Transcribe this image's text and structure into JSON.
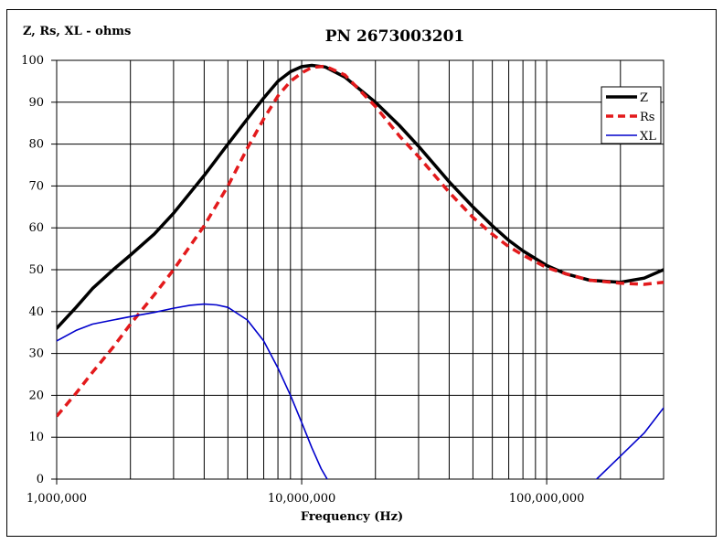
{
  "chart_data": {
    "type": "line",
    "title": "PN 2673003201",
    "xlabel": "Frequency (Hz)",
    "ylabel": "Z, Rs, XL - ohms",
    "xscale": "log",
    "xlim": [
      1000000,
      300000000
    ],
    "ylim": [
      0,
      100
    ],
    "grid": true,
    "legend_position": "top-right",
    "x_tick_labels": [
      {
        "value": 1000000,
        "label": "1,000,000"
      },
      {
        "value": 10000000,
        "label": "10,000,000"
      },
      {
        "value": 100000000,
        "label": "100,000,000"
      }
    ],
    "y_ticks": [
      0,
      10,
      20,
      30,
      40,
      50,
      60,
      70,
      80,
      90,
      100
    ],
    "series": [
      {
        "name": "Z",
        "color": "#000000",
        "style": "solid-thick",
        "points": [
          [
            1000000,
            36
          ],
          [
            1200000,
            41
          ],
          [
            1400000,
            45.5
          ],
          [
            1700000,
            50
          ],
          [
            2000000,
            53.5
          ],
          [
            2500000,
            58.5
          ],
          [
            3000000,
            63.5
          ],
          [
            4000000,
            72.5
          ],
          [
            5000000,
            80
          ],
          [
            6000000,
            86
          ],
          [
            7000000,
            91
          ],
          [
            8000000,
            95
          ],
          [
            9000000,
            97.3
          ],
          [
            10000000,
            98.5
          ],
          [
            11000000,
            98.8
          ],
          [
            12500000,
            98.4
          ],
          [
            15000000,
            96
          ],
          [
            20000000,
            90
          ],
          [
            25000000,
            84.5
          ],
          [
            30000000,
            79.5
          ],
          [
            40000000,
            71
          ],
          [
            50000000,
            65
          ],
          [
            60000000,
            60.5
          ],
          [
            70000000,
            57
          ],
          [
            80000000,
            54.5
          ],
          [
            100000000,
            51
          ],
          [
            120000000,
            49
          ],
          [
            150000000,
            47.5
          ],
          [
            200000000,
            47
          ],
          [
            250000000,
            48
          ],
          [
            300000000,
            50
          ]
        ]
      },
      {
        "name": "Rs",
        "color": "#e31a1c",
        "style": "dashed-thick",
        "points": [
          [
            1000000,
            15
          ],
          [
            1200000,
            20.5
          ],
          [
            1400000,
            25.5
          ],
          [
            1700000,
            31.5
          ],
          [
            2000000,
            37
          ],
          [
            2500000,
            44
          ],
          [
            3000000,
            50
          ],
          [
            4000000,
            60.5
          ],
          [
            5000000,
            70
          ],
          [
            6000000,
            79
          ],
          [
            7000000,
            86
          ],
          [
            8000000,
            91.5
          ],
          [
            9000000,
            95
          ],
          [
            10000000,
            97
          ],
          [
            11000000,
            98.3
          ],
          [
            12500000,
            98.6
          ],
          [
            15000000,
            96.5
          ],
          [
            20000000,
            89
          ],
          [
            25000000,
            82
          ],
          [
            30000000,
            77
          ],
          [
            40000000,
            68.5
          ],
          [
            50000000,
            62.5
          ],
          [
            60000000,
            58.5
          ],
          [
            70000000,
            55.5
          ],
          [
            80000000,
            53.5
          ],
          [
            100000000,
            50.5
          ],
          [
            120000000,
            49
          ],
          [
            150000000,
            47.5
          ],
          [
            200000000,
            46.8
          ],
          [
            250000000,
            46.5
          ],
          [
            300000000,
            47
          ]
        ]
      },
      {
        "name": "XL",
        "color": "#0000cc",
        "style": "solid-thin",
        "points": [
          [
            1000000,
            33
          ],
          [
            1200000,
            35.5
          ],
          [
            1400000,
            37
          ],
          [
            1700000,
            38
          ],
          [
            2000000,
            38.8
          ],
          [
            2500000,
            39.8
          ],
          [
            3000000,
            40.8
          ],
          [
            3500000,
            41.5
          ],
          [
            4000000,
            41.8
          ],
          [
            4500000,
            41.6
          ],
          [
            5000000,
            41
          ],
          [
            6000000,
            38
          ],
          [
            7000000,
            33
          ],
          [
            8000000,
            26.5
          ],
          [
            9000000,
            20
          ],
          [
            10000000,
            13.5
          ],
          [
            11000000,
            7.5
          ],
          [
            12000000,
            2.5
          ],
          [
            13000000,
            -1
          ],
          [
            150000000,
            -1
          ],
          [
            160000000,
            0
          ],
          [
            200000000,
            5.5
          ],
          [
            250000000,
            11
          ],
          [
            300000000,
            17
          ]
        ]
      }
    ]
  }
}
